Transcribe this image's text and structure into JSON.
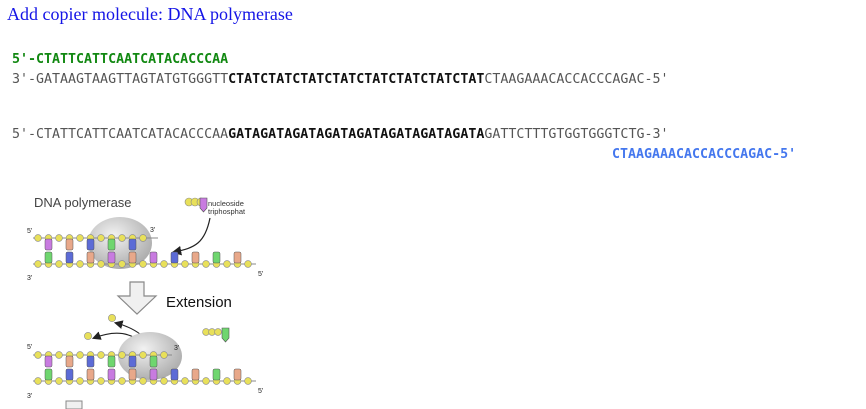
{
  "title": "Add copier molecule: DNA polymerase",
  "primer": {
    "text": "5'-CTATTCATTCAATCATACACCCAA"
  },
  "template": {
    "prefix": "3'-GATAAGTAAGTTAGTATGTGGGTT",
    "bold": "CTATCTATCTATCTATCTATCTATCTATCTAT",
    "suffix": "CTAAGAAACACCACCCAGAC-5'"
  },
  "extended": {
    "prefix": "5'-CTATTCATTCAATCATACACCCAA",
    "bold": "GATAGATAGATAGATAGATAGATAGATAGATA",
    "suffix": "GATTCTTTGTGGTGGGTCTG-3'"
  },
  "reverse_primer": {
    "text": "CTAAGAAACACCACCCAGAC-5'"
  },
  "diagram": {
    "polymerase_label": "DNA polymerase",
    "nucleoside_label_1": "nucleoside",
    "nucleoside_label_2": "triphosphat",
    "extension_label": "Extension",
    "five_prime": "5'",
    "three_prime": "3'",
    "ppp_badge": "P",
    "colors": {
      "T": "#c87be0",
      "A": "#6fd66f",
      "G": "#5c6bd6",
      "C": "#e8a88a",
      "phosphate": "#e8e05a",
      "enzyme": "#bdbdbd"
    }
  }
}
